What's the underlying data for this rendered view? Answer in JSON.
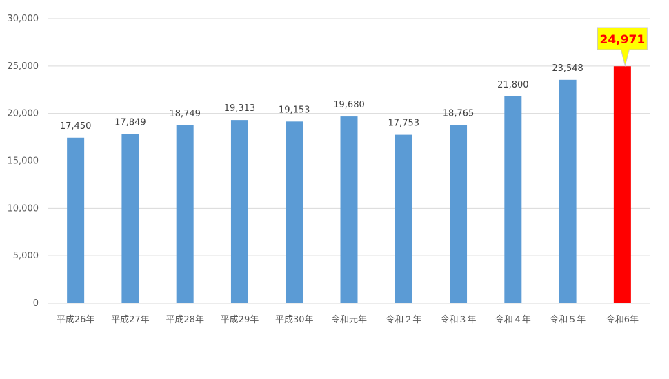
{
  "chart_data": {
    "type": "bar",
    "categories": [
      "平成26年",
      "平成27年",
      "平成28年",
      "平成29年",
      "平成30年",
      "令和元年",
      "令和２年",
      "令和３年",
      "令和４年",
      "令和５年",
      "令和6年"
    ],
    "values": [
      17450,
      17849,
      18749,
      19313,
      19153,
      19680,
      17753,
      18765,
      21800,
      23548,
      24971
    ],
    "data_labels": [
      "17,450",
      "17,849",
      "18,749",
      "19,313",
      "19,153",
      "19,680",
      "17,753",
      "18,765",
      "21,800",
      "23,548",
      "24,971"
    ],
    "ylim": [
      0,
      30000
    ],
    "yticks": [
      0,
      5000,
      10000,
      15000,
      20000,
      25000,
      30000
    ],
    "ytick_labels": [
      "0",
      "5,000",
      "10,000",
      "15,000",
      "20,000",
      "25,000",
      "30,000"
    ],
    "grid": true,
    "title": "",
    "xlabel": "",
    "ylabel": "",
    "highlight_index": 10,
    "colors": {
      "bar": "#5b9bd5",
      "highlight_bar": "#ff0000",
      "callout_fill": "#ffff00",
      "callout_border": "#c9c9c9",
      "callout_text": "#ff0000",
      "grid": "#d9d9d9"
    }
  }
}
